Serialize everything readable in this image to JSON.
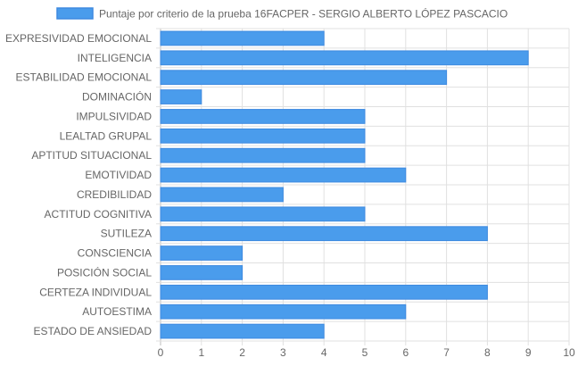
{
  "chart_data": {
    "type": "bar",
    "orientation": "horizontal",
    "legend": {
      "label": "Puntaje por criterio de la prueba 16FACPER - SERGIO ALBERTO LÓPEZ PASCACIO",
      "position": "top-center"
    },
    "series": [
      {
        "name": "Puntaje por criterio de la prueba 16FACPER - SERGIO ALBERTO LÓPEZ PASCACIO",
        "color": "#4a9cec",
        "border_color": "#3e8ae0",
        "values": [
          4,
          9,
          7,
          1,
          5,
          5,
          5,
          6,
          3,
          5,
          8,
          2,
          2,
          8,
          6,
          4
        ]
      }
    ],
    "categories": [
      "EXPRESIVIDAD EMOCIONAL",
      "INTELIGENCIA",
      "ESTABILIDAD EMOCIONAL",
      "DOMINACIÓN",
      "IMPULSIVIDAD",
      "LEALTAD GRUPAL",
      "APTITUD SITUACIONAL",
      "EMOTIVIDAD",
      "CREDIBILIDAD",
      "ACTITUD COGNITIVA",
      "SUTILEZA",
      "CONSCIENCIA",
      "POSICIÓN SOCIAL",
      "CERTEZA INDIVIDUAL",
      "AUTOESTIMA",
      "ESTADO DE ANSIEDAD"
    ],
    "xlim": [
      0,
      10
    ],
    "x_ticks": [
      "0",
      "1",
      "2",
      "3",
      "4",
      "5",
      "6",
      "7",
      "8",
      "9",
      "10"
    ],
    "grid": true,
    "colors": {
      "grid": "#e0e0e0",
      "label": "#666666"
    }
  }
}
